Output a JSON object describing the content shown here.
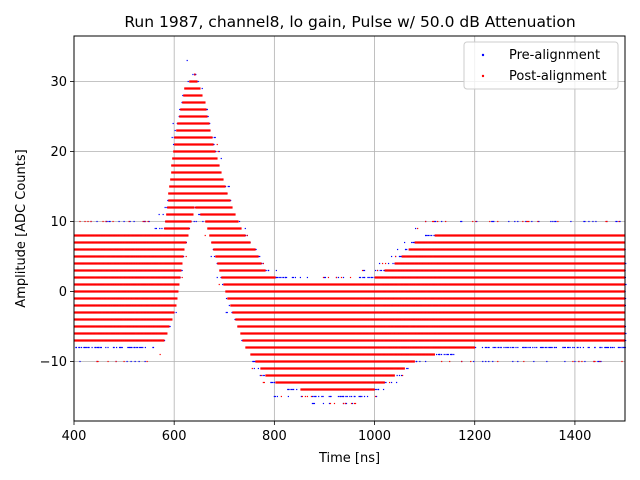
{
  "chart_data": {
    "type": "scatter",
    "title": "Run 1987, channel8, lo gain, Pulse w/ 50.0 dB Attenuation",
    "xlabel": "Time [ns]",
    "ylabel": "Amplitude [ADC Counts]",
    "xlim": [
      400,
      1500
    ],
    "ylim": [
      -18.5,
      36.5
    ],
    "xticks": [
      400,
      600,
      800,
      1000,
      1200,
      1400
    ],
    "yticks": [
      -10,
      0,
      10,
      20,
      30
    ],
    "ytick_labels": [
      "−10",
      "0",
      "10",
      "20",
      "30"
    ],
    "grid": true,
    "legend_position": "top-right",
    "series": [
      {
        "name": "Pre-alignment",
        "color": "#0000ff",
        "marker": "point"
      },
      {
        "name": "Post-alignment",
        "color": "#ff0000",
        "marker": "point"
      }
    ],
    "band_envelope": {
      "description": "Dense discrete-level samples; integer ADC values between lower and upper envelope at each time",
      "time_ns": [
        400,
        540,
        580,
        600,
        620,
        640,
        660,
        680,
        700,
        720,
        740,
        760,
        780,
        800,
        850,
        900,
        950,
        1000,
        1040,
        1080,
        1120,
        1200,
        1300,
        1400,
        1500
      ],
      "upper": [
        8,
        8,
        9,
        22,
        29,
        31,
        27,
        20,
        15,
        11,
        8,
        6,
        3,
        2,
        1,
        1,
        1,
        2,
        4,
        7,
        8,
        8,
        8,
        8,
        8
      ],
      "lower": [
        -8,
        -8,
        -7,
        -3,
        6,
        12,
        10,
        5,
        0,
        -4,
        -8,
        -10,
        -12,
        -13,
        -14,
        -15,
        -15,
        -14,
        -12,
        -10,
        -9,
        -8,
        -8,
        -8,
        -8
      ],
      "outlier_max": [
        10,
        10,
        11,
        25,
        34,
        32,
        28,
        22,
        17,
        12,
        9,
        6,
        4,
        3,
        2,
        2,
        2,
        3,
        5,
        9,
        10,
        10,
        10,
        10,
        10
      ],
      "outlier_min": [
        -10,
        -10,
        -9,
        -5,
        4,
        10,
        8,
        3,
        -2,
        -6,
        -9,
        -11,
        -13,
        -15,
        -15,
        -16,
        -16,
        -15,
        -13,
        -11,
        -10,
        -10,
        -10,
        -10,
        -10
      ]
    }
  }
}
